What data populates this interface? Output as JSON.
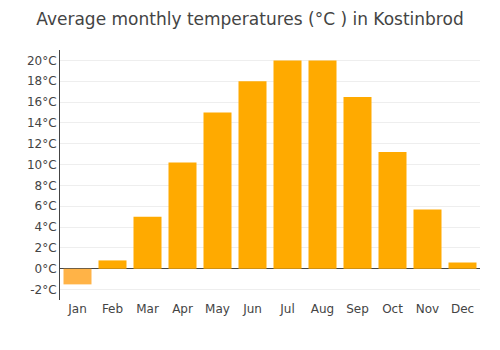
{
  "chart_data": {
    "type": "bar",
    "title": "Average monthly temperatures (°C ) in Kostinbrod",
    "categories": [
      "Jan",
      "Feb",
      "Mar",
      "Apr",
      "May",
      "Jun",
      "Jul",
      "Aug",
      "Sep",
      "Oct",
      "Nov",
      "Dec"
    ],
    "values": [
      -1.5,
      0.8,
      5.0,
      10.2,
      15.0,
      18.0,
      20.0,
      20.0,
      16.5,
      11.2,
      5.7,
      0.6
    ],
    "colors": [
      "#FFB347",
      "#FFAA00",
      "#FFAA00",
      "#FFAA00",
      "#FFAA00",
      "#FFAA00",
      "#FFAA00",
      "#FFAA00",
      "#FFAA00",
      "#FFAA00",
      "#FFAA00",
      "#FFAA00"
    ],
    "ylim": [
      -3,
      21
    ],
    "yticks": [
      {
        "value": -2,
        "label": "-2°C"
      },
      {
        "value": 0,
        "label": "0°C"
      },
      {
        "value": 2,
        "label": "2°C"
      },
      {
        "value": 4,
        "label": "4°C"
      },
      {
        "value": 6,
        "label": "6°C"
      },
      {
        "value": 8,
        "label": "8°C"
      },
      {
        "value": 10,
        "label": "10°C"
      },
      {
        "value": 12,
        "label": "12°C"
      },
      {
        "value": 14,
        "label": "14°C"
      },
      {
        "value": 16,
        "label": "16°C"
      },
      {
        "value": 18,
        "label": "18°C"
      },
      {
        "value": 20,
        "label": "20°C"
      }
    ],
    "grid": true
  }
}
